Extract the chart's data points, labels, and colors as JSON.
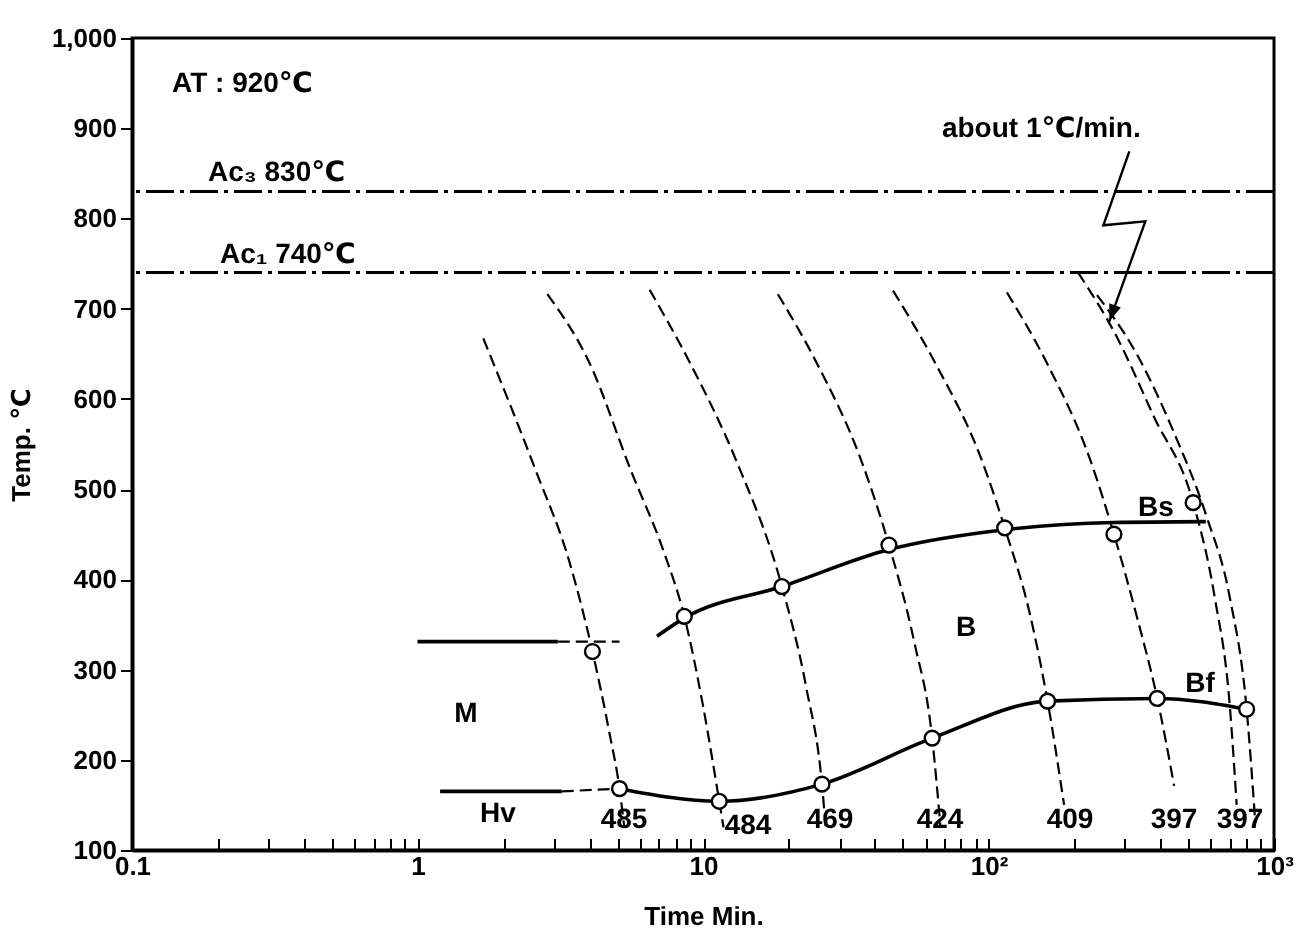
{
  "chart_data": {
    "type": "line",
    "xlabel": "Time   Min.",
    "ylabel": "Temp.  ℃",
    "log": "x",
    "grid": false,
    "xlim": [
      0.1,
      1000
    ],
    "ylim": [
      100,
      1000
    ],
    "xticks": [
      0.1,
      {
        "value": 0.2,
        "label": null
      },
      {
        "value": 0.3,
        "label": null
      },
      {
        "value": 0.4,
        "label": null
      },
      {
        "value": 0.5,
        "label": null
      },
      {
        "value": 0.6,
        "label": null
      },
      {
        "value": 0.7,
        "label": null
      },
      {
        "value": 0.8,
        "label": null
      },
      {
        "value": 0.9,
        "label": null
      },
      1,
      {
        "value": 2,
        "label": null
      },
      {
        "value": 3,
        "label": null
      },
      {
        "value": 4,
        "label": null
      },
      {
        "value": 5,
        "label": null
      },
      {
        "value": 6,
        "label": null
      },
      {
        "value": 7,
        "label": null
      },
      {
        "value": 8,
        "label": null
      },
      {
        "value": 9,
        "label": null
      },
      10,
      {
        "value": 20,
        "label": null
      },
      {
        "value": 30,
        "label": null
      },
      {
        "value": 40,
        "label": null
      },
      {
        "value": 50,
        "label": null
      },
      {
        "value": 60,
        "label": null
      },
      {
        "value": 70,
        "label": null
      },
      {
        "value": 80,
        "label": null
      },
      {
        "value": 90,
        "label": null
      },
      {
        "value": 100,
        "label": "10²"
      },
      {
        "value": 200,
        "label": null
      },
      {
        "value": 300,
        "label": null
      },
      {
        "value": 400,
        "label": null
      },
      {
        "value": 500,
        "label": null
      },
      {
        "value": 600,
        "label": null
      },
      {
        "value": 700,
        "label": null
      },
      {
        "value": 800,
        "label": null
      },
      {
        "value": 900,
        "label": null
      },
      {
        "value": 1000,
        "label": "10³"
      }
    ],
    "yticks": [
      100,
      200,
      300,
      400,
      500,
      600,
      700,
      800,
      900,
      {
        "value": 1000,
        "label": "1,000"
      }
    ],
    "ref_lines": [
      {
        "axis": "y",
        "value": 830,
        "label": "Ac₃ 830℃",
        "color": "#000000",
        "line_style": "dashdot"
      },
      {
        "axis": "y",
        "value": 740,
        "label": "Ac₁ 740℃",
        "color": "#000000",
        "line_style": "dashdot"
      }
    ],
    "series": [
      {
        "line_style": "dashed",
        "color": "#000000",
        "x": [
          1.7,
          2.6,
          3.4,
          4.1,
          4.7,
          5.1,
          5.3
        ],
        "values": [
          667,
          520,
          420,
          320,
          230,
          168,
          125
        ]
      },
      {
        "line_style": "dashed",
        "color": "#000000",
        "x": [
          2.85,
          4.0,
          5.6,
          7.3,
          8.6,
          10,
          11.4,
          11.8
        ],
        "values": [
          716,
          640,
          520,
          430,
          359,
          260,
          154,
          125
        ]
      },
      {
        "line_style": "dashed",
        "color": "#000000",
        "x": [
          6.5,
          9.0,
          13.1,
          18.9,
          23,
          26.1,
          26.9
        ],
        "values": [
          721,
          640,
          531,
          392,
          280,
          173,
          125
        ]
      },
      {
        "line_style": "dashed",
        "color": "#000000",
        "x": [
          18.3,
          25,
          35.9,
          44.8,
          55,
          63.5,
          67.9
        ],
        "values": [
          716,
          640,
          531,
          438,
          330,
          224,
          125
        ]
      },
      {
        "line_style": "dashed",
        "color": "#000000",
        "x": [
          46.3,
          65,
          95,
          114,
          140,
          161,
          184
        ],
        "values": [
          720,
          640,
          531,
          457,
          360,
          265,
          150
        ]
      },
      {
        "line_style": "dashed",
        "color": "#000000",
        "x": [
          116,
          160,
          228,
          275,
          330,
          390,
          447
        ],
        "values": [
          718,
          640,
          531,
          450,
          360,
          268,
          171
        ]
      },
      {
        "line_style": "dashed",
        "color": "#000000",
        "x": [
          206,
          280,
          380,
          521,
          620,
          700,
          740
        ],
        "values": [
          740,
          670,
          580,
          485,
          380,
          260,
          150
        ]
      },
      {
        "line_style": "dashed",
        "color": "#000000",
        "x": [
          240,
          330,
          450,
          580,
          700,
          802,
          860
        ],
        "values": [
          715,
          650,
          560,
          470,
          380,
          256,
          130
        ]
      },
      {
        "line_style": "solid",
        "color": "#000000",
        "x": [
          6.9,
          8.6,
          18.9,
          44.8,
          114,
          275,
          577
        ],
        "values": [
          337,
          357,
          392,
          433,
          455,
          463,
          464
        ]
      },
      {
        "line_style": "solid",
        "color": "#000000",
        "x": [
          5.1,
          11.4,
          26.1,
          63.5,
          161,
          390,
          802
        ],
        "values": [
          168,
          154,
          173,
          224,
          265,
          268,
          256
        ]
      },
      {
        "line_style": "solid",
        "color": "#000000",
        "x": [
          1.2,
          3.2
        ],
        "values": [
          165,
          165
        ]
      },
      {
        "line_style": "dashed",
        "color": "#000000",
        "x": [
          3.2,
          5.1
        ],
        "values": [
          165,
          168
        ]
      },
      {
        "line_style": "solid",
        "color": "#000000",
        "x": [
          1.0,
          3.1
        ],
        "values": [
          331,
          331
        ]
      },
      {
        "line_style": "dashed",
        "color": "#000000",
        "x": [
          3.1,
          5.1
        ],
        "values": [
          331,
          331
        ]
      },
      {
        "type": "scatter",
        "marker": "circle",
        "color": "#000000",
        "x": [
          4.1,
          8.6,
          18.9,
          44.8,
          114,
          275,
          521,
          5.1,
          11.4,
          26.1,
          63.5,
          161,
          390,
          802
        ],
        "values": [
          320,
          359,
          392,
          438,
          457,
          450,
          485,
          168,
          154,
          173,
          224,
          265,
          268,
          256
        ]
      }
    ],
    "annotations": [
      "AT : 920℃",
      {
        "text": "about 1℃/min.",
        "x": 265,
        "y": 686
      },
      "M",
      "B",
      "Bs",
      "Bf",
      "Hv",
      "485",
      "484",
      "469",
      "424",
      "409",
      "397",
      "397"
    ]
  }
}
